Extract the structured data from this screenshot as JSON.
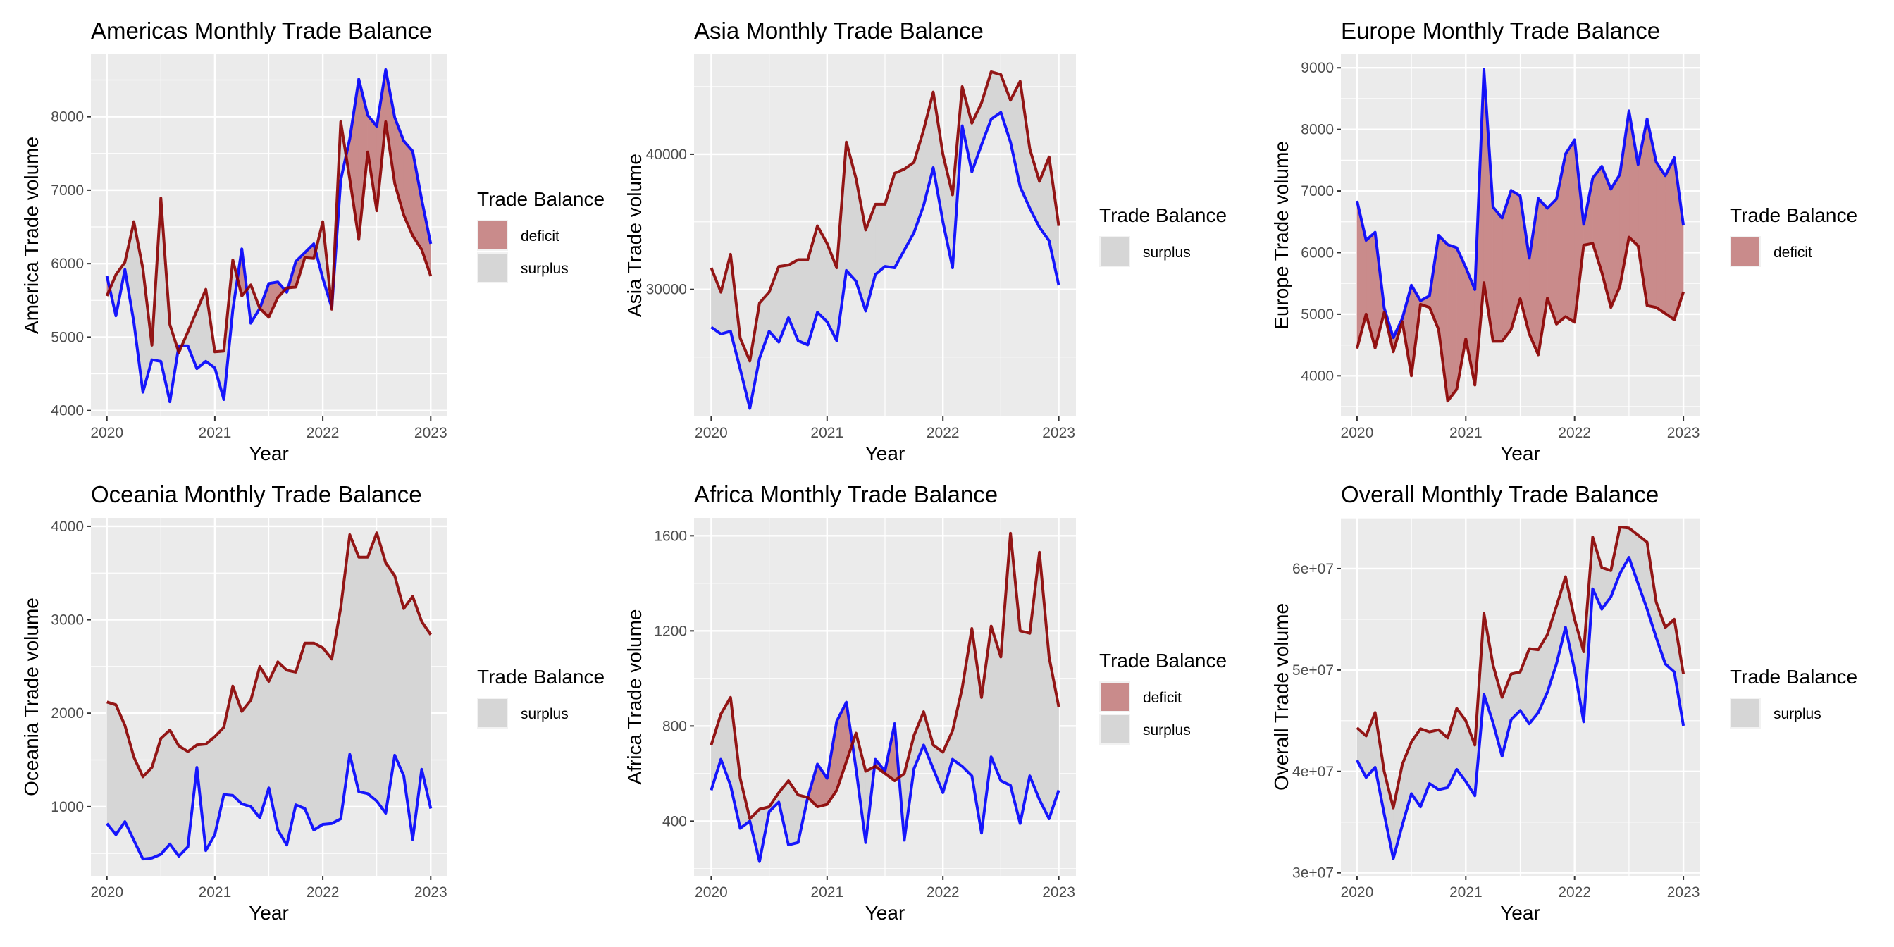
{
  "figure": {
    "legend_title": "Trade Balance",
    "colors": {
      "line_a": "#0000ff",
      "line_b": "#8b0000",
      "deficit_fill": "#c98b8b",
      "surplus_fill": "#d6d6d6",
      "panel_bg": "#ebebeb",
      "grid": "#ffffff"
    }
  },
  "chart_data": [
    {
      "id": "americas",
      "type": "area",
      "title": "Americas Monthly Trade Balance",
      "xlabel": "Year",
      "ylabel": "America Trade volume",
      "x_start": "2020-01",
      "x_ticks": [
        "2020",
        "2021",
        "2022",
        "2023"
      ],
      "y_ticks": [
        4000,
        5000,
        6000,
        7000,
        8000
      ],
      "y_tick_labels": [
        "4000",
        "5000",
        "6000",
        "7000",
        "8000"
      ],
      "ylim": [
        3920,
        8850
      ],
      "grid": true,
      "legend": {
        "position": "right",
        "entries": [
          "deficit",
          "surplus"
        ]
      },
      "series": [
        {
          "name": "blue",
          "color": "#0000ff",
          "values": [
            5830,
            5290,
            5920,
            5200,
            4250,
            4690,
            4670,
            4120,
            4880,
            4880,
            4570,
            4670,
            4580,
            4150,
            5370,
            6200,
            5190,
            5390,
            5730,
            5750,
            5610,
            6030,
            6150,
            6270,
            5800,
            5400,
            7140,
            7700,
            8510,
            8020,
            7870,
            8640,
            7990,
            7670,
            7530,
            6870,
            6270
          ]
        },
        {
          "name": "darkred",
          "color": "#8b0000",
          "values": [
            5560,
            5850,
            6020,
            6570,
            5930,
            4890,
            6890,
            5170,
            4790,
            5070,
            5360,
            5650,
            4800,
            4810,
            6050,
            5560,
            5710,
            5390,
            5270,
            5540,
            5670,
            5680,
            6080,
            6070,
            6570,
            5380,
            7930,
            7150,
            6330,
            7520,
            6720,
            7930,
            7090,
            6660,
            6380,
            6190,
            5830
          ]
        }
      ]
    },
    {
      "id": "asia",
      "type": "area",
      "title": "Asia Monthly Trade Balance",
      "xlabel": "Year",
      "ylabel": "Asia Trade volume",
      "x_start": "2020-01",
      "x_ticks": [
        "2020",
        "2021",
        "2022",
        "2023"
      ],
      "y_ticks": [
        30000,
        40000
      ],
      "y_tick_labels": [
        "30000",
        "40000"
      ],
      "ylim": [
        20600,
        47400
      ],
      "grid": true,
      "legend": {
        "position": "right",
        "entries": [
          "surplus"
        ]
      },
      "series": [
        {
          "name": "blue",
          "color": "#0000ff",
          "values": [
            27200,
            26700,
            26900,
            24100,
            21200,
            24900,
            26900,
            26100,
            27900,
            26200,
            25900,
            28300,
            27600,
            26200,
            31400,
            30600,
            28400,
            31100,
            31700,
            31600,
            32900,
            34200,
            36200,
            39000,
            35000,
            31600,
            42100,
            38700,
            40700,
            42600,
            43100,
            40900,
            37600,
            36000,
            34600,
            33600,
            30300
          ]
        },
        {
          "name": "darkred",
          "color": "#8b0000",
          "values": [
            31600,
            29800,
            32600,
            26400,
            24700,
            29000,
            29800,
            31700,
            31800,
            32200,
            32200,
            34700,
            33400,
            31600,
            40900,
            38200,
            34400,
            36300,
            36300,
            38600,
            38900,
            39400,
            41800,
            44600,
            40000,
            37000,
            45000,
            42300,
            43800,
            46100,
            45900,
            44000,
            45400,
            40400,
            38000,
            39800,
            34700
          ]
        }
      ]
    },
    {
      "id": "europe",
      "type": "area",
      "title": "Europe Monthly Trade Balance",
      "xlabel": "Year",
      "ylabel": "Europe Trade volume",
      "x_start": "2020-01",
      "x_ticks": [
        "2020",
        "2021",
        "2022",
        "2023"
      ],
      "y_ticks": [
        4000,
        5000,
        6000,
        7000,
        8000,
        9000
      ],
      "y_tick_labels": [
        "4000",
        "5000",
        "6000",
        "7000",
        "8000",
        "9000"
      ],
      "ylim": [
        3340,
        9220
      ],
      "grid": true,
      "legend": {
        "position": "right",
        "entries": [
          "deficit"
        ]
      },
      "series": [
        {
          "name": "blue",
          "color": "#0000ff",
          "values": [
            6840,
            6200,
            6330,
            5100,
            4620,
            4930,
            5470,
            5220,
            5300,
            6280,
            6130,
            6080,
            5760,
            5400,
            8970,
            6740,
            6560,
            7010,
            6920,
            5910,
            6880,
            6720,
            6870,
            7600,
            7830,
            6460,
            7210,
            7400,
            7030,
            7270,
            8300,
            7430,
            8170,
            7470,
            7250,
            7540,
            6440
          ]
        },
        {
          "name": "darkred",
          "color": "#8b0000",
          "values": [
            4440,
            5000,
            4450,
            5030,
            4390,
            4880,
            4000,
            5160,
            5110,
            4750,
            3590,
            3780,
            4600,
            3850,
            5510,
            4560,
            4560,
            4750,
            5250,
            4680,
            4340,
            5260,
            4840,
            4960,
            4870,
            6120,
            6150,
            5680,
            5110,
            5450,
            6250,
            6110,
            5140,
            5110,
            5010,
            4910,
            5360
          ]
        }
      ]
    },
    {
      "id": "oceania",
      "type": "area",
      "title": "Oceania Monthly Trade Balance",
      "xlabel": "Year",
      "ylabel": "Oceania Trade volume",
      "x_start": "2020-01",
      "x_ticks": [
        "2020",
        "2021",
        "2022",
        "2023"
      ],
      "y_ticks": [
        1000,
        2000,
        3000,
        4000
      ],
      "y_tick_labels": [
        "1000",
        "2000",
        "3000",
        "4000"
      ],
      "ylim": [
        260,
        4090
      ],
      "grid": true,
      "legend": {
        "position": "right",
        "entries": [
          "surplus"
        ]
      },
      "series": [
        {
          "name": "blue",
          "color": "#0000ff",
          "values": [
            820,
            700,
            840,
            640,
            440,
            450,
            490,
            600,
            470,
            570,
            1420,
            530,
            700,
            1130,
            1120,
            1030,
            1000,
            880,
            1200,
            750,
            590,
            1020,
            980,
            750,
            810,
            820,
            870,
            1560,
            1160,
            1140,
            1060,
            930,
            1550,
            1330,
            650,
            1400,
            980
          ]
        },
        {
          "name": "darkred",
          "color": "#8b0000",
          "values": [
            2120,
            2090,
            1870,
            1530,
            1320,
            1420,
            1730,
            1820,
            1650,
            1590,
            1660,
            1670,
            1750,
            1850,
            2290,
            2020,
            2140,
            2500,
            2340,
            2550,
            2460,
            2440,
            2750,
            2750,
            2700,
            2580,
            3130,
            3910,
            3670,
            3670,
            3930,
            3610,
            3470,
            3120,
            3250,
            2980,
            2840
          ]
        }
      ]
    },
    {
      "id": "africa",
      "type": "area",
      "title": "Africa Monthly Trade Balance",
      "xlabel": "Year",
      "ylabel": "Africa Trade volume",
      "x_start": "2020-01",
      "x_ticks": [
        "2020",
        "2021",
        "2022",
        "2023"
      ],
      "y_ticks": [
        400,
        800,
        1200,
        1600
      ],
      "y_tick_labels": [
        "400",
        "800",
        "1200",
        "1600"
      ],
      "ylim": [
        170,
        1675
      ],
      "grid": true,
      "legend": {
        "position": "right",
        "entries": [
          "deficit",
          "surplus"
        ]
      },
      "series": [
        {
          "name": "blue",
          "color": "#0000ff",
          "values": [
            530,
            660,
            550,
            370,
            400,
            230,
            440,
            480,
            300,
            310,
            500,
            640,
            580,
            820,
            900,
            620,
            310,
            660,
            610,
            810,
            320,
            620,
            720,
            620,
            520,
            660,
            630,
            590,
            350,
            670,
            570,
            550,
            390,
            590,
            490,
            410,
            530
          ]
        },
        {
          "name": "darkred",
          "color": "#8b0000",
          "values": [
            720,
            850,
            920,
            580,
            410,
            450,
            460,
            520,
            570,
            510,
            500,
            460,
            470,
            530,
            650,
            770,
            610,
            630,
            600,
            570,
            600,
            760,
            860,
            720,
            690,
            780,
            960,
            1210,
            920,
            1220,
            1090,
            1610,
            1200,
            1190,
            1530,
            1090,
            880
          ]
        }
      ]
    },
    {
      "id": "overall",
      "type": "area",
      "title": "Overall Monthly Trade Balance",
      "xlabel": "Year",
      "ylabel": "Overall Trade volume",
      "x_start": "2020-01",
      "x_ticks": [
        "2020",
        "2021",
        "2022",
        "2023"
      ],
      "y_ticks": [
        30000000,
        40000000,
        50000000,
        60000000
      ],
      "y_tick_labels": [
        "3e+07",
        "4e+07",
        "5e+07",
        "6e+07"
      ],
      "ylim": [
        29700000,
        65000000
      ],
      "grid": true,
      "legend": {
        "position": "right",
        "entries": [
          "surplus"
        ]
      },
      "series": [
        {
          "name": "blue",
          "color": "#0000ff",
          "values": [
            41100000,
            39400000,
            40400000,
            35800000,
            31400000,
            34700000,
            37800000,
            36500000,
            38800000,
            38200000,
            38400000,
            40200000,
            39000000,
            37600000,
            47600000,
            44800000,
            41500000,
            45100000,
            46000000,
            44700000,
            45800000,
            47800000,
            50600000,
            54200000,
            50000000,
            44900000,
            58000000,
            56000000,
            57200000,
            59500000,
            61100000,
            58500000,
            56000000,
            53200000,
            50600000,
            49800000,
            44500000
          ]
        },
        {
          "name": "darkred",
          "color": "#8b0000",
          "values": [
            44300000,
            43500000,
            45800000,
            40000000,
            36400000,
            40700000,
            42900000,
            44200000,
            43900000,
            44100000,
            43300000,
            46200000,
            45000000,
            42600000,
            55600000,
            50500000,
            47300000,
            49600000,
            49800000,
            52100000,
            52000000,
            53500000,
            56300000,
            59200000,
            55000000,
            51800000,
            63100000,
            60100000,
            59800000,
            64100000,
            64000000,
            63300000,
            62600000,
            56700000,
            54200000,
            55000000,
            49600000
          ]
        }
      ]
    }
  ]
}
